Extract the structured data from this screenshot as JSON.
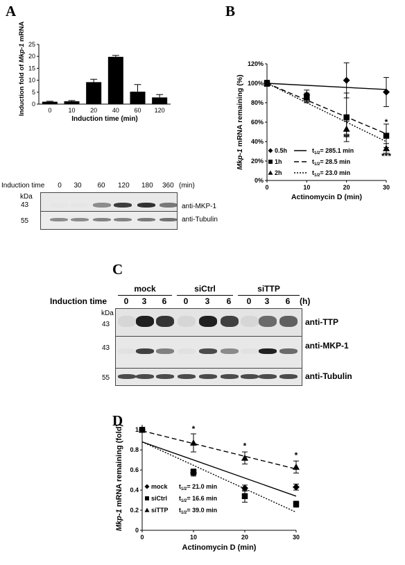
{
  "panels": {
    "A": {
      "letter": "A",
      "chart_data": {
        "type": "bar",
        "ylabel": "Induction fold of Mkp-1 mRNA",
        "ylabel_parts": [
          "Induction fold of ",
          "Mkp-1",
          " mRNA"
        ],
        "xlabel": "Induction time (min)",
        "categories": [
          "0",
          "10",
          "20",
          "40",
          "60",
          "120"
        ],
        "values": [
          1.0,
          1.2,
          9.2,
          19.8,
          5.2,
          2.8
        ],
        "errors": [
          0.2,
          0.3,
          1.2,
          0.6,
          3.0,
          1.2
        ],
        "ylim": [
          0,
          25
        ],
        "yticks": [
          "0",
          "5",
          "10",
          "15",
          "20",
          "25"
        ],
        "bar_color": "#000000"
      },
      "blot": {
        "time_label": "Induction time",
        "times": [
          "0",
          "30",
          "60",
          "120",
          "180",
          "360"
        ],
        "unit": "(min)",
        "kda": "kDa",
        "marker_upper": "43",
        "marker_lower": "55",
        "antibody_upper": "anti-MKP-1",
        "antibody_lower": "anti-Tubulin",
        "mkp1_intensity": [
          0,
          0,
          0.45,
          0.85,
          0.9,
          0.55
        ],
        "tubulin_intensity": [
          0.5,
          0.5,
          0.55,
          0.55,
          0.6,
          0.65
        ]
      }
    },
    "B": {
      "letter": "B",
      "chart_data": {
        "type": "scatter",
        "ylabel": "Mkp-1 mRNA remaining (%)",
        "ylabel_parts": [
          "Mkp-1",
          " mRNA remaining (%)"
        ],
        "xlabel": "Actinomycin D (min)",
        "x": [
          0,
          10,
          20,
          30
        ],
        "xticks": [
          "0",
          "10",
          "20",
          "30"
        ],
        "yticks": [
          "0%",
          "20%",
          "40%",
          "60%",
          "80%",
          "100%",
          "120%"
        ],
        "ylim": [
          0,
          120
        ],
        "xlim": [
          0,
          30
        ],
        "series": [
          {
            "name": "0.5h",
            "marker": "diamond",
            "values": [
              100,
              88,
              103,
              91
            ],
            "errors": [
              3,
              5,
              18,
              15
            ],
            "fit": [
              100,
              93.6
            ],
            "halflife_label": "t1/2= 285.1 min",
            "line": "solid"
          },
          {
            "name": "1h",
            "marker": "square",
            "values": [
              100,
              85,
              65,
              46
            ],
            "errors": [
              3,
              4,
              25,
              12
            ],
            "fit": [
              100,
              48
            ],
            "halflife_label": "t1/2= 28.5 min",
            "line": "dashed"
          },
          {
            "name": "2h",
            "marker": "triangle",
            "values": [
              100,
              85,
              53,
              33
            ],
            "errors": [
              3,
              5,
              8,
              5
            ],
            "fit": [
              100,
              40
            ],
            "halflife_label": "t1/2= 23.0 min",
            "line": "dotted"
          }
        ],
        "annotations": [
          {
            "text": "*",
            "x": 30,
            "y": 57
          },
          {
            "text": "**",
            "x": 20,
            "y": 42
          },
          {
            "text": "***",
            "x": 30,
            "y": 22
          }
        ]
      }
    },
    "C": {
      "letter": "C",
      "groups": [
        "mock",
        "siCtrl",
        "siTTP"
      ],
      "time_label": "Induction time",
      "times": [
        "0",
        "3",
        "6",
        "0",
        "3",
        "6",
        "0",
        "3",
        "6"
      ],
      "unit": "(h)",
      "kda": "kDa",
      "markers": [
        "43",
        "43",
        "55"
      ],
      "antibodies": [
        "anti-TTP",
        "anti-MKP-1",
        "anti-Tubulin"
      ],
      "ttp_intensity": [
        0.05,
        0.9,
        0.8,
        0.05,
        0.9,
        0.75,
        0.05,
        0.55,
        0.6
      ],
      "mkp1_intensity": [
        0,
        0.75,
        0.45,
        0,
        0.7,
        0.4,
        0,
        0.9,
        0.55
      ],
      "tubulin_intensity": [
        0.7,
        0.7,
        0.7,
        0.7,
        0.7,
        0.7,
        0.7,
        0.7,
        0.7
      ]
    },
    "D": {
      "letter": "D",
      "chart_data": {
        "type": "scatter",
        "ylabel": "Mkp-1 mRNA remaining (fold)",
        "ylabel_parts": [
          "Mkp-1",
          " mRNA remaining (fold)"
        ],
        "xlabel": "Actinomycin D (min)",
        "x": [
          0,
          10,
          20,
          30
        ],
        "xticks": [
          "0",
          "10",
          "20",
          "30"
        ],
        "yticks": [
          "0",
          "0.2",
          "0.4",
          "0.6",
          "0.8",
          "1"
        ],
        "ylim": [
          0,
          1.05
        ],
        "xlim": [
          0,
          30
        ],
        "series": [
          {
            "name": "mock",
            "marker": "diamond",
            "values": [
              1.0,
              0.57,
              0.42,
              0.43
            ],
            "errors": [
              0.02,
              0.03,
              0.03,
              0.03
            ],
            "fit": [
              0.88,
              0.34
            ],
            "halflife_label": "t1/2= 21.0 min",
            "line": "solid"
          },
          {
            "name": "siCtrl",
            "marker": "square",
            "values": [
              1.0,
              0.58,
              0.34,
              0.26
            ],
            "errors": [
              0.02,
              0.03,
              0.06,
              0.03
            ],
            "fit": [
              0.88,
              0.18
            ],
            "halflife_label": "t1/2= 16.6 min",
            "line": "dotted"
          },
          {
            "name": "siTTP",
            "marker": "triangle",
            "values": [
              1.0,
              0.87,
              0.72,
              0.63
            ],
            "errors": [
              0.02,
              0.09,
              0.06,
              0.06
            ],
            "fit": [
              0.99,
              0.61
            ],
            "halflife_label": "t1/2= 39.0 min",
            "line": "dashed"
          }
        ],
        "annotations": [
          {
            "text": "*",
            "x": 10,
            "y": 0.98
          },
          {
            "text": "*",
            "x": 20,
            "y": 0.81
          },
          {
            "text": "*",
            "x": 30,
            "y": 0.72
          }
        ]
      }
    }
  }
}
